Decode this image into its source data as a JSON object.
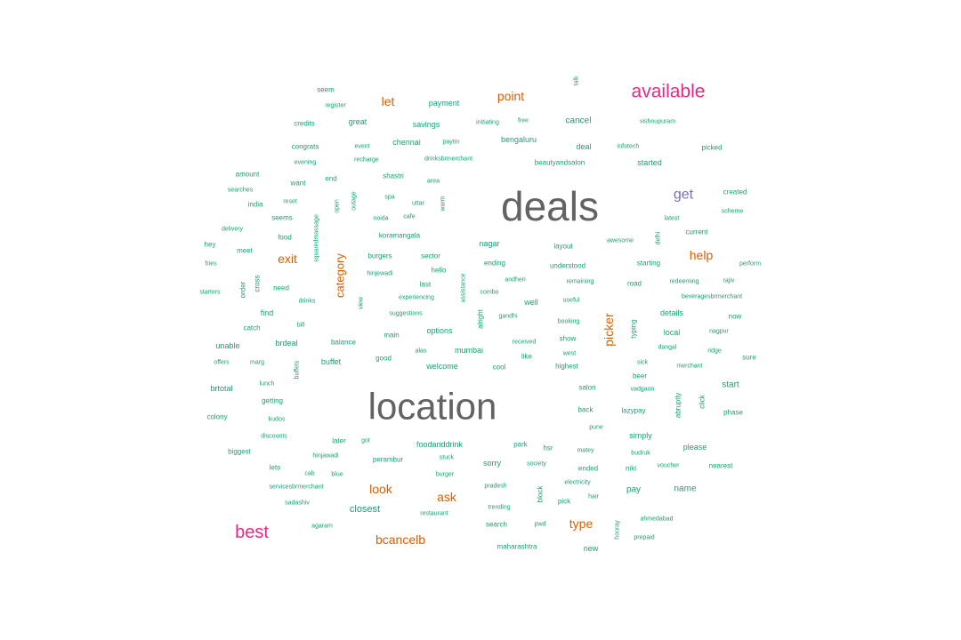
{
  "chart_data": {
    "type": "wordcloud",
    "colors": {
      "dark": "#636363",
      "pink": "#e7298a",
      "orange": "#d95f02",
      "purple": "#7570b3",
      "green": "#1b9e77"
    },
    "words": [
      {
        "text": "deals",
        "color": "dark"
      },
      {
        "text": "location",
        "color": "dark"
      },
      {
        "text": "available",
        "color": "pink"
      },
      {
        "text": "best",
        "color": "pink"
      },
      {
        "text": "get",
        "color": "purple"
      },
      {
        "text": "point",
        "color": "orange"
      },
      {
        "text": "let",
        "color": "orange"
      },
      {
        "text": "exit",
        "color": "orange"
      },
      {
        "text": "help",
        "color": "orange"
      },
      {
        "text": "category",
        "color": "orange"
      },
      {
        "text": "picker",
        "color": "orange"
      },
      {
        "text": "look",
        "color": "orange"
      },
      {
        "text": "ask",
        "color": "orange"
      },
      {
        "text": "type",
        "color": "orange"
      },
      {
        "text": "bcancelb",
        "color": "orange"
      },
      {
        "text": "talk",
        "color": "green"
      },
      {
        "text": "seem",
        "color": "green"
      },
      {
        "text": "payment",
        "color": "green"
      },
      {
        "text": "register",
        "color": "green"
      },
      {
        "text": "credits",
        "color": "green"
      },
      {
        "text": "great",
        "color": "green"
      },
      {
        "text": "savings",
        "color": "green"
      },
      {
        "text": "initiating",
        "color": "green"
      },
      {
        "text": "free",
        "color": "green"
      },
      {
        "text": "cancel",
        "color": "green"
      },
      {
        "text": "vishnupuram",
        "color": "green"
      },
      {
        "text": "congrats",
        "color": "green"
      },
      {
        "text": "event",
        "color": "green"
      },
      {
        "text": "chennai",
        "color": "green"
      },
      {
        "text": "paytm",
        "color": "green"
      },
      {
        "text": "bengaluru",
        "color": "green"
      },
      {
        "text": "deal",
        "color": "green"
      },
      {
        "text": "infotech",
        "color": "green"
      },
      {
        "text": "picked",
        "color": "green"
      },
      {
        "text": "evening",
        "color": "green"
      },
      {
        "text": "recharge",
        "color": "green"
      },
      {
        "text": "drinksbrmerchant",
        "color": "green"
      },
      {
        "text": "beautyandsalon",
        "color": "green"
      },
      {
        "text": "started",
        "color": "green"
      },
      {
        "text": "amount",
        "color": "green"
      },
      {
        "text": "end",
        "color": "green"
      },
      {
        "text": "shastri",
        "color": "green"
      },
      {
        "text": "want",
        "color": "green"
      },
      {
        "text": "area",
        "color": "green"
      },
      {
        "text": "searches",
        "color": "green"
      },
      {
        "text": "created",
        "color": "green"
      },
      {
        "text": "india",
        "color": "green"
      },
      {
        "text": "reset",
        "color": "green"
      },
      {
        "text": "outage",
        "color": "green"
      },
      {
        "text": "open",
        "color": "green"
      },
      {
        "text": "spa",
        "color": "green"
      },
      {
        "text": "uttar",
        "color": "green"
      },
      {
        "text": "warm",
        "color": "green"
      },
      {
        "text": "scheme",
        "color": "green"
      },
      {
        "text": "seems",
        "color": "green"
      },
      {
        "text": "squaredmassage",
        "color": "green"
      },
      {
        "text": "noida",
        "color": "green"
      },
      {
        "text": "cafe",
        "color": "green"
      },
      {
        "text": "latest",
        "color": "green"
      },
      {
        "text": "delivery",
        "color": "green"
      },
      {
        "text": "delhi",
        "color": "green"
      },
      {
        "text": "current",
        "color": "green"
      },
      {
        "text": "food",
        "color": "green"
      },
      {
        "text": "koramangala",
        "color": "green"
      },
      {
        "text": "nagar",
        "color": "green"
      },
      {
        "text": "layout",
        "color": "green"
      },
      {
        "text": "awesome",
        "color": "green"
      },
      {
        "text": "hey",
        "color": "green"
      },
      {
        "text": "meet",
        "color": "green"
      },
      {
        "text": "burgers",
        "color": "green"
      },
      {
        "text": "sector",
        "color": "green"
      },
      {
        "text": "fries",
        "color": "green"
      },
      {
        "text": "hinjewadi",
        "color": "green"
      },
      {
        "text": "hello",
        "color": "green"
      },
      {
        "text": "ending",
        "color": "green"
      },
      {
        "text": "understood",
        "color": "green"
      },
      {
        "text": "starting",
        "color": "green"
      },
      {
        "text": "perform",
        "color": "green"
      },
      {
        "text": "order",
        "color": "green"
      },
      {
        "text": "cross",
        "color": "green"
      },
      {
        "text": "need",
        "color": "green"
      },
      {
        "text": "andheri",
        "color": "green"
      },
      {
        "text": "remaining",
        "color": "green"
      },
      {
        "text": "road",
        "color": "green"
      },
      {
        "text": "redeeming",
        "color": "green"
      },
      {
        "text": "rajiv",
        "color": "green"
      },
      {
        "text": "starters",
        "color": "green"
      },
      {
        "text": "drinks",
        "color": "green"
      },
      {
        "text": "view",
        "color": "green"
      },
      {
        "text": "experiencing",
        "color": "green"
      },
      {
        "text": "assistance",
        "color": "green"
      },
      {
        "text": "combo",
        "color": "green"
      },
      {
        "text": "last",
        "color": "green"
      },
      {
        "text": "useful",
        "color": "green"
      },
      {
        "text": "beveragesbrmerchant",
        "color": "green"
      },
      {
        "text": "find",
        "color": "green"
      },
      {
        "text": "suggestions",
        "color": "green"
      },
      {
        "text": "alright",
        "color": "green"
      },
      {
        "text": "well",
        "color": "green"
      },
      {
        "text": "gandhi",
        "color": "green"
      },
      {
        "text": "details",
        "color": "green"
      },
      {
        "text": "now",
        "color": "green"
      },
      {
        "text": "bill",
        "color": "green"
      },
      {
        "text": "booking",
        "color": "green"
      },
      {
        "text": "typing",
        "color": "green"
      },
      {
        "text": "catch",
        "color": "green"
      },
      {
        "text": "main",
        "color": "green"
      },
      {
        "text": "options",
        "color": "green"
      },
      {
        "text": "local",
        "color": "green"
      },
      {
        "text": "nagpur",
        "color": "green"
      },
      {
        "text": "unable",
        "color": "green"
      },
      {
        "text": "brdeal",
        "color": "green"
      },
      {
        "text": "balance",
        "color": "green"
      },
      {
        "text": "received",
        "color": "green"
      },
      {
        "text": "show",
        "color": "green"
      },
      {
        "text": "dangal",
        "color": "green"
      },
      {
        "text": "alas",
        "color": "green"
      },
      {
        "text": "mumbai",
        "color": "green"
      },
      {
        "text": "ridge",
        "color": "green"
      },
      {
        "text": "offers",
        "color": "green"
      },
      {
        "text": "marg",
        "color": "green"
      },
      {
        "text": "buffet",
        "color": "green"
      },
      {
        "text": "good",
        "color": "green"
      },
      {
        "text": "like",
        "color": "green"
      },
      {
        "text": "west",
        "color": "green"
      },
      {
        "text": "sure",
        "color": "green"
      },
      {
        "text": "buffets",
        "color": "green"
      },
      {
        "text": "welcome",
        "color": "green"
      },
      {
        "text": "cool",
        "color": "green"
      },
      {
        "text": "highest",
        "color": "green"
      },
      {
        "text": "sick",
        "color": "green"
      },
      {
        "text": "merchant",
        "color": "green"
      },
      {
        "text": "beer",
        "color": "green"
      },
      {
        "text": "brtotal",
        "color": "green"
      },
      {
        "text": "lunch",
        "color": "green"
      },
      {
        "text": "salon",
        "color": "green"
      },
      {
        "text": "vadgaon",
        "color": "green"
      },
      {
        "text": "abruptly",
        "color": "green"
      },
      {
        "text": "click",
        "color": "green"
      },
      {
        "text": "start",
        "color": "green"
      },
      {
        "text": "getting",
        "color": "green"
      },
      {
        "text": "colony",
        "color": "green"
      },
      {
        "text": "kudos",
        "color": "green"
      },
      {
        "text": "back",
        "color": "green"
      },
      {
        "text": "lazypay",
        "color": "green"
      },
      {
        "text": "phase",
        "color": "green"
      },
      {
        "text": "pune",
        "color": "green"
      },
      {
        "text": "discounts",
        "color": "green"
      },
      {
        "text": "later",
        "color": "green"
      },
      {
        "text": "got",
        "color": "green"
      },
      {
        "text": "foodanddrink",
        "color": "green"
      },
      {
        "text": "park",
        "color": "green"
      },
      {
        "text": "simply",
        "color": "green"
      },
      {
        "text": "biggest",
        "color": "green"
      },
      {
        "text": "hsr",
        "color": "green"
      },
      {
        "text": "matey",
        "color": "green"
      },
      {
        "text": "budruk",
        "color": "green"
      },
      {
        "text": "please",
        "color": "green"
      },
      {
        "text": "hinjawadi",
        "color": "green"
      },
      {
        "text": "perambur",
        "color": "green"
      },
      {
        "text": "stuck",
        "color": "green"
      },
      {
        "text": "lets",
        "color": "green"
      },
      {
        "text": "sorry",
        "color": "green"
      },
      {
        "text": "society",
        "color": "green"
      },
      {
        "text": "ended",
        "color": "green"
      },
      {
        "text": "niki",
        "color": "green"
      },
      {
        "text": "voucher",
        "color": "green"
      },
      {
        "text": "nearest",
        "color": "green"
      },
      {
        "text": "cab",
        "color": "green"
      },
      {
        "text": "blue",
        "color": "green"
      },
      {
        "text": "burger",
        "color": "green"
      },
      {
        "text": "electricity",
        "color": "green"
      },
      {
        "text": "servicesbrmerchant",
        "color": "green"
      },
      {
        "text": "pradesh",
        "color": "green"
      },
      {
        "text": "block",
        "color": "green"
      },
      {
        "text": "pay",
        "color": "green"
      },
      {
        "text": "name",
        "color": "green"
      },
      {
        "text": "hair",
        "color": "green"
      },
      {
        "text": "sadashiv",
        "color": "green"
      },
      {
        "text": "trending",
        "color": "green"
      },
      {
        "text": "pick",
        "color": "green"
      },
      {
        "text": "closest",
        "color": "green"
      },
      {
        "text": "restaurant",
        "color": "green"
      },
      {
        "text": "ahmedabad",
        "color": "green"
      },
      {
        "text": "agaram",
        "color": "green"
      },
      {
        "text": "search",
        "color": "green"
      },
      {
        "text": "pwd",
        "color": "green"
      },
      {
        "text": "hooray",
        "color": "green"
      },
      {
        "text": "prepaid",
        "color": "green"
      },
      {
        "text": "maharashtra",
        "color": "green"
      },
      {
        "text": "new",
        "color": "green"
      }
    ]
  }
}
